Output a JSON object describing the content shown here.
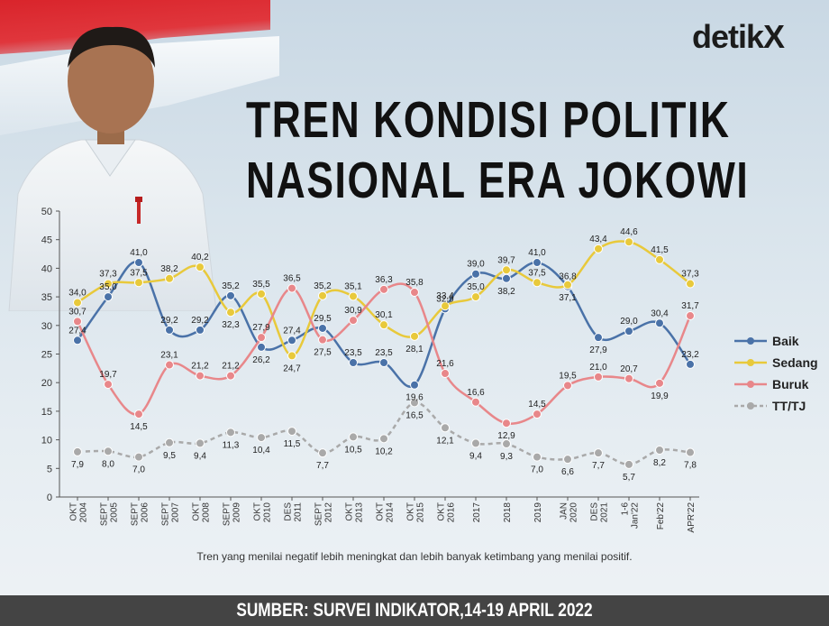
{
  "logo": "detikX",
  "title_line1": "TREN KONDISI POLITIK",
  "title_line2": "NASIONAL ERA JOKOWI",
  "note": "Tren yang menilai negatif lebih meningkat dan lebih banyak ketimbang yang menilai positif.",
  "source": "SUMBER: SURVEI INDIKATOR,14-19 APRIL 2022",
  "legend": [
    {
      "name": "Baik",
      "color": "#4a72a8"
    },
    {
      "name": "Sedang",
      "color": "#e8c93b"
    },
    {
      "name": "Buruk",
      "color": "#e8878a"
    },
    {
      "name": "TT/TJ",
      "color": "#a9a9a9"
    }
  ],
  "chart_data": {
    "type": "line",
    "ylim": [
      0,
      50
    ],
    "yticks": [
      0,
      5,
      10,
      15,
      20,
      25,
      30,
      35,
      40,
      45,
      50
    ],
    "categories": [
      [
        "OKT",
        "2004"
      ],
      [
        "SEPT",
        "2005"
      ],
      [
        "SEPT",
        "2006"
      ],
      [
        "SEPT",
        "2007"
      ],
      [
        "OKT",
        "2008"
      ],
      [
        "SEPT",
        "2009"
      ],
      [
        "OKT",
        "2010"
      ],
      [
        "DES",
        "2011"
      ],
      [
        "SEPT",
        "2012"
      ],
      [
        "OKT",
        "2013"
      ],
      [
        "OKT",
        "2014"
      ],
      [
        "OKT",
        "2015"
      ],
      [
        "OKT",
        "2016"
      ],
      [
        "2017"
      ],
      [
        "2018"
      ],
      [
        "2019"
      ],
      [
        "JAN",
        "2020"
      ],
      [
        "DES",
        "2021"
      ],
      [
        "1-6",
        "Jan'22"
      ],
      [
        "Feb'22"
      ],
      [
        "APR'22"
      ]
    ],
    "series": [
      {
        "name": "Baik",
        "color": "#4a72a8",
        "dashed": false,
        "values": [
          27.4,
          35.0,
          41.0,
          29.2,
          29.2,
          35.2,
          26.2,
          27.4,
          29.5,
          23.5,
          23.5,
          19.6,
          32.9,
          39.0,
          38.2,
          41.0,
          36.8,
          27.9,
          29.0,
          30.4,
          23.2
        ],
        "labels": [
          "27,4",
          "35,0",
          "41,0",
          "29,2",
          "29,2",
          "35,2",
          "26,2",
          "27,4",
          "29,5",
          "23,5",
          "23,5",
          "19,6",
          "32,9",
          "39,0",
          "38,2",
          "41,0",
          "36,8",
          "27,9",
          "29,0",
          "30,4",
          "23,2"
        ]
      },
      {
        "name": "Sedang",
        "color": "#e8c93b",
        "dashed": false,
        "values": [
          34.0,
          37.3,
          37.5,
          38.2,
          40.2,
          32.3,
          35.5,
          24.7,
          35.2,
          35.1,
          30.1,
          28.1,
          33.4,
          35.0,
          39.7,
          37.5,
          37.1,
          43.4,
          44.6,
          41.5,
          37.3
        ],
        "labels": [
          "34,0",
          "37,3",
          "37,5",
          "38,2",
          "40,2",
          "32,3",
          "35,5",
          "24,7",
          "35,2",
          "35,1",
          "30,1",
          "28,1",
          "33,4",
          "35,0",
          "39,7",
          "37,5",
          "37,1",
          "43,4",
          "44,6",
          "41,5",
          "37,3"
        ]
      },
      {
        "name": "Buruk",
        "color": "#e8878a",
        "dashed": false,
        "values": [
          30.7,
          19.7,
          14.5,
          23.1,
          21.2,
          21.2,
          27.9,
          36.5,
          27.5,
          30.9,
          36.3,
          35.8,
          21.6,
          16.6,
          12.9,
          14.5,
          19.5,
          21.0,
          20.7,
          19.9,
          31.7
        ],
        "labels": [
          "30,7",
          "19,7",
          "14,5",
          "23,1",
          "21,2",
          "21,2",
          "27,9",
          "36,5",
          "27,5",
          "30,9",
          "36,3",
          "35,8",
          "21,6",
          "16,6",
          "12,9",
          "14,5",
          "19,5",
          "21,0",
          "20,7",
          "19,9",
          "31,7"
        ]
      },
      {
        "name": "TT/TJ",
        "color": "#a9a9a9",
        "dashed": true,
        "values": [
          7.9,
          8.0,
          7.0,
          9.5,
          9.4,
          11.3,
          10.4,
          11.5,
          7.7,
          10.5,
          10.2,
          16.5,
          12.1,
          9.4,
          9.3,
          7.0,
          6.6,
          7.7,
          5.7,
          8.2,
          7.8
        ],
        "labels": [
          "7,9",
          "8,0",
          "7,0",
          "9,5",
          "9,4",
          "11,3",
          "10,4",
          "11,5",
          "7,7",
          "10,5",
          "10,2",
          "16,5",
          "12,1",
          "9,4",
          "9,3",
          "7,0",
          "6,6",
          "7,7",
          "5,7",
          "8,2",
          "7,8"
        ]
      }
    ]
  }
}
